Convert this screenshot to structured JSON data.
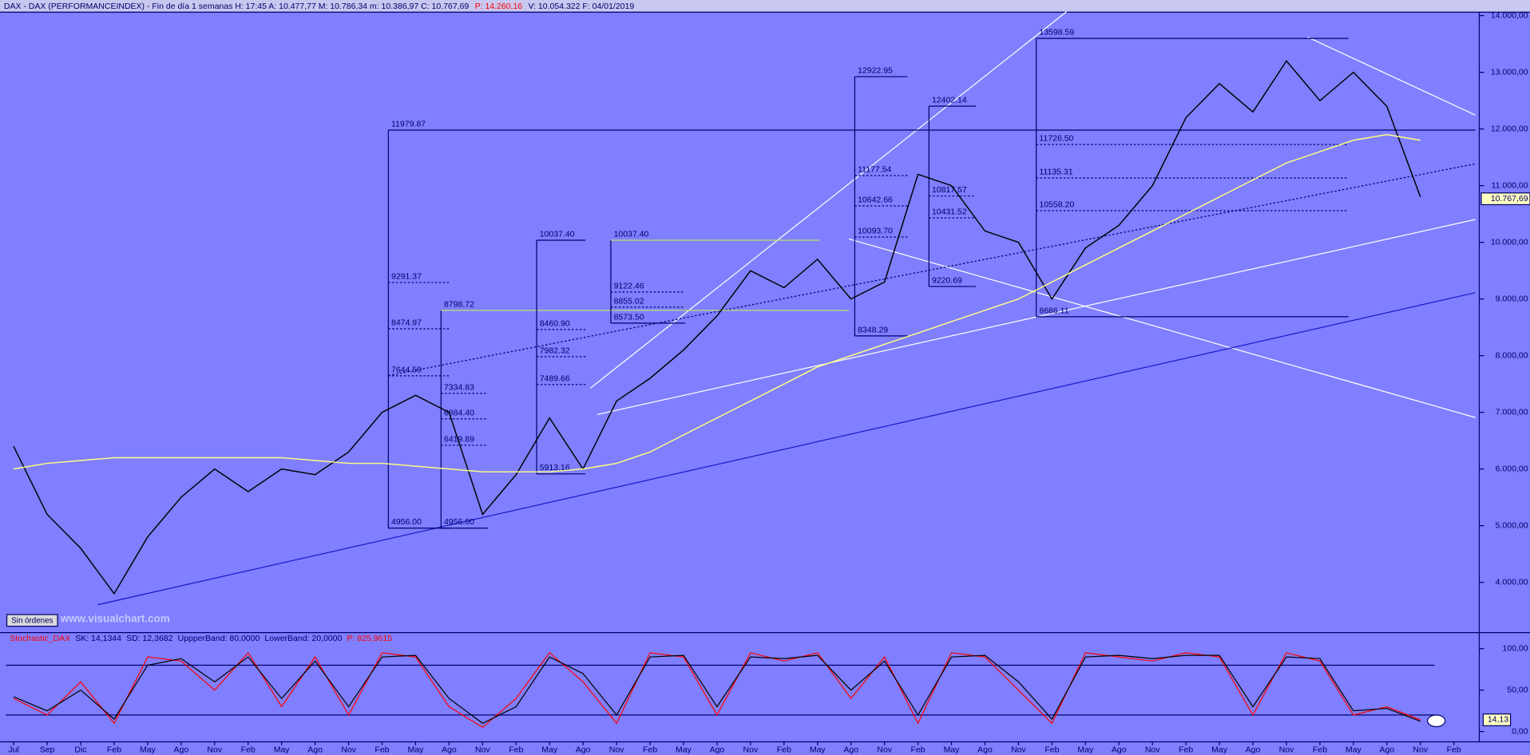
{
  "header": [
    {
      "text": "DAX - DAX (PERFORMANCEINDEX) - Fin de día 1 semanas  H: 17:45  A: 10.477,77  M: 10.786,34  m: 10.386,97  C: 10.767,69",
      "color": "#00006b"
    },
    {
      "text": "P: 14.260,16",
      "color": "#ff0000"
    },
    {
      "text": "V: 10.054.322  F: 04/01/2019",
      "color": "#00006b"
    }
  ],
  "button": "Sin órdenes",
  "watermark": "www.visualchart.com",
  "chart_data": [
    {
      "type": "line",
      "ylim": [
        3122,
        14052
      ],
      "yticks": [
        {
          "value": 4000,
          "label": "4.000,00"
        },
        {
          "value": 5000,
          "label": "5.000,00"
        },
        {
          "value": 6000,
          "label": "6.000,00"
        },
        {
          "value": 7000,
          "label": "7.000,00"
        },
        {
          "value": 8000,
          "label": "8.000,00"
        },
        {
          "value": 9000,
          "label": "9.000,00"
        },
        {
          "value": 10000,
          "label": "10.000,00"
        },
        {
          "value": 11000,
          "label": "11.000,00"
        },
        {
          "value": 12000,
          "label": "12.000,00"
        },
        {
          "value": 13000,
          "label": "13.000,00"
        },
        {
          "value": 14000,
          "label": "14.000,00"
        }
      ],
      "series": [
        {
          "color": "#000000",
          "values": [
            6400,
            5200,
            4600,
            3800,
            4800,
            5500,
            6000,
            5600,
            6000,
            5900,
            6300,
            7000,
            7300,
            7000,
            5200,
            5900,
            6900,
            6000,
            7200,
            7600,
            8100,
            8700,
            9500,
            9200,
            9700,
            9000,
            9300,
            11200,
            11000,
            10200,
            10000,
            9000,
            9900,
            10300,
            11000,
            12200,
            12800,
            12300,
            13200,
            12500,
            13000,
            12400,
            10800,
            null
          ]
        },
        {
          "color": "#ffff80",
          "values": [
            6000,
            6100,
            6150,
            6200,
            6200,
            6200,
            6200,
            6200,
            6200,
            6150,
            6100,
            6100,
            6050,
            6000,
            5950,
            5950,
            5950,
            6000,
            6100,
            6300,
            6600,
            6900,
            7200,
            7500,
            7800,
            8000,
            8200,
            8400,
            8600,
            8800,
            9000,
            9300,
            9600,
            9900,
            10200,
            10500,
            10800,
            11100,
            11400,
            11600,
            11800,
            11900,
            11800,
            null
          ]
        }
      ],
      "last": {
        "value": 10767.69,
        "label": "10.767,69"
      },
      "fib_sets": [
        {
          "levels": [
            11979.87,
            9291.37,
            8474.97,
            {
              "value": 7644.5,
              "label": "7644.50"
            },
            {
              "value": 4956,
              "label": "4956.00"
            }
          ]
        },
        {
          "levels": [
            8798.72,
            7334.83,
            {
              "value": 6884.4,
              "label": "6884.40"
            },
            6419.89,
            {
              "value": 4956,
              "label": "4956.00"
            }
          ]
        },
        {
          "levels": [
            {
              "value": 10037.4,
              "label": "10037.40"
            },
            {
              "value": 8460.9,
              "label": "8460.90"
            },
            7982.32,
            7489.66,
            5913.16
          ]
        },
        {
          "levels": [
            {
              "value": 10037.4,
              "label": "10037.40"
            },
            9122.46,
            8855.02,
            {
              "value": 8573.5,
              "label": "8573.50"
            }
          ]
        },
        {
          "levels": [
            12922.95,
            11177.54,
            10642.66,
            {
              "value": 10093.7,
              "label": "10093.70"
            },
            8348.29
          ]
        },
        {
          "levels": [
            12402.14,
            10817.57,
            10431.52,
            9220.69
          ]
        },
        {
          "levels": [
            13598.59,
            {
              "value": 11726.5,
              "label": "11726.50"
            },
            11135.31,
            {
              "value": 10558.2,
              "label": "10558.20"
            },
            8686.11
          ]
        }
      ]
    },
    {
      "type": "line",
      "title": "Stochastic_DAX",
      "title_color": "#ff0000",
      "stats": [
        "SK: 14,1344",
        "SD: 12,3682",
        "UppperBand: 80,0000",
        "LowerBand: 20,0000"
      ],
      "p": "P: 825,9615",
      "categories": [
        "Jul",
        "Sep",
        "Dic",
        "Feb",
        "May",
        "Ago",
        "Nov",
        "Feb",
        "May",
        "Ago",
        "Nov",
        "Feb",
        "May",
        "Ago",
        "Nov",
        "Feb",
        "May",
        "Ago",
        "Nov",
        "Feb",
        "May",
        "Ago",
        "Nov",
        "Feb",
        "May",
        "Ago",
        "Nov",
        "Feb",
        "May",
        "Ago",
        "Nov",
        "Feb",
        "May",
        "Ago",
        "Nov",
        "Feb",
        "May",
        "Ago",
        "Nov",
        "Feb",
        "May",
        "Ago",
        "Nov",
        "Feb"
      ],
      "ylim": [
        -11.8,
        117.6
      ],
      "yticks": [
        {
          "value": 100,
          "label": "100,00"
        },
        {
          "value": 50,
          "label": "50,00"
        },
        {
          "value": 0,
          "label": "0,00"
        }
      ],
      "bands": [
        80,
        20
      ],
      "series": [
        {
          "color": "#ff0000",
          "values": [
            40,
            20,
            60,
            10,
            90,
            85,
            50,
            95,
            30,
            90,
            20,
            95,
            90,
            30,
            5,
            40,
            95,
            60,
            10,
            95,
            90,
            20,
            95,
            85,
            95,
            40,
            90,
            10,
            95,
            90,
            50,
            10,
            95,
            90,
            85,
            95,
            90,
            20,
            95,
            85,
            20,
            30,
            14.1344,
            null
          ]
        },
        {
          "color": "#000000",
          "values": [
            42,
            25,
            50,
            15,
            80,
            88,
            60,
            90,
            40,
            85,
            30,
            90,
            92,
            40,
            10,
            30,
            90,
            70,
            20,
            90,
            92,
            30,
            90,
            88,
            92,
            50,
            85,
            20,
            90,
            92,
            60,
            15,
            90,
            92,
            88,
            92,
            92,
            30,
            90,
            88,
            25,
            28,
            12.3682,
            null
          ]
        }
      ],
      "last": {
        "value": 14.13,
        "label": "14,13"
      }
    }
  ]
}
